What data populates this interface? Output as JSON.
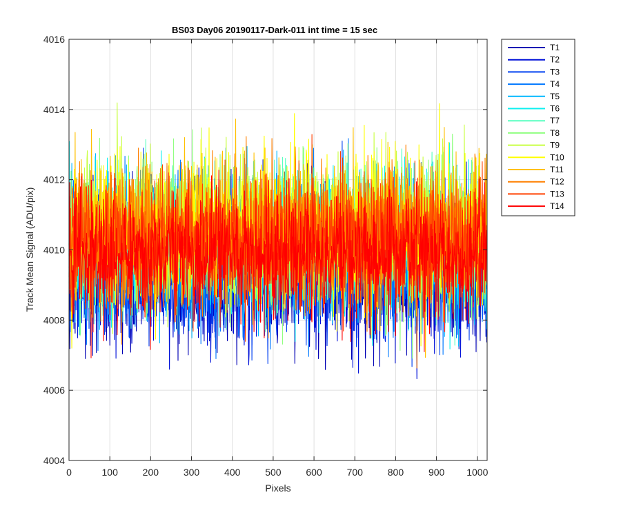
{
  "chart_data": {
    "type": "line",
    "title": "BS03 Day06 20190117-Dark-011 int time = 15 sec",
    "xlabel": "Pixels",
    "ylabel": "Track Mean Signal (ADU/pix)",
    "xlim": [
      0,
      1024
    ],
    "ylim": [
      4004,
      4016
    ],
    "xticks": [
      0,
      100,
      200,
      300,
      400,
      500,
      600,
      700,
      800,
      900,
      1000
    ],
    "yticks": [
      4004,
      4006,
      4008,
      4010,
      4012,
      4014,
      4016
    ],
    "grid": true,
    "legend_position": "outside-top-right",
    "num_points": 1024,
    "series": [
      {
        "name": "T1",
        "color": "#0000b4",
        "mean": 4009.3,
        "noise": 1.0
      },
      {
        "name": "T2",
        "color": "#0010d8",
        "mean": 4009.4,
        "noise": 1.0
      },
      {
        "name": "T3",
        "color": "#0040f0",
        "mean": 4009.6,
        "noise": 1.0
      },
      {
        "name": "T4",
        "color": "#0078ff",
        "mean": 4009.9,
        "noise": 1.0
      },
      {
        "name": "T5",
        "color": "#00b8ff",
        "mean": 4010.1,
        "noise": 1.0
      },
      {
        "name": "T6",
        "color": "#10f0f0",
        "mean": 4010.2,
        "noise": 1.0
      },
      {
        "name": "T7",
        "color": "#58ffc0",
        "mean": 4010.3,
        "noise": 1.0
      },
      {
        "name": "T8",
        "color": "#90ff80",
        "mean": 4010.4,
        "noise": 1.0
      },
      {
        "name": "T9",
        "color": "#c8ff40",
        "mean": 4010.5,
        "noise": 1.0
      },
      {
        "name": "T10",
        "color": "#ffff00",
        "mean": 4010.6,
        "noise": 1.0
      },
      {
        "name": "T11",
        "color": "#ffc000",
        "mean": 4010.6,
        "noise": 1.0
      },
      {
        "name": "T12",
        "color": "#ff8000",
        "mean": 4010.4,
        "noise": 1.0
      },
      {
        "name": "T13",
        "color": "#ff4000",
        "mean": 4010.2,
        "noise": 0.9
      },
      {
        "name": "T14",
        "color": "#ff0000",
        "mean": 4009.9,
        "noise": 0.9
      }
    ]
  }
}
